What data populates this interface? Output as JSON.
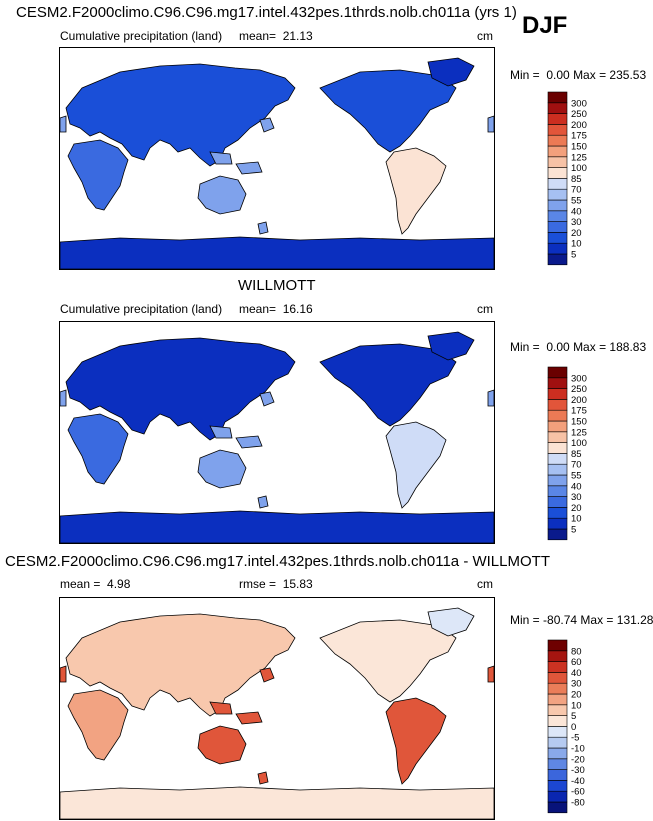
{
  "season": "DJF",
  "chart_data": [
    {
      "type": "heatmap",
      "title": "CESM2.F2000climo.C96.C96.mg17.intel.432pes.1thrds.nolb.ch011a (yrs 1)",
      "subtitle": "Cumulative precipitation (land)",
      "mean_label": "mean=",
      "mean": "21.13",
      "rmse_label": "",
      "rmse": "",
      "units": "cm",
      "min_label": "Min =",
      "min": "0.00",
      "max_label": "Max =",
      "max": "235.53",
      "levels": [
        "5",
        "10",
        "20",
        "30",
        "40",
        "55",
        "70",
        "85",
        "100",
        "125",
        "150",
        "175",
        "200",
        "250",
        "300"
      ],
      "colors": [
        "#0a1a8c",
        "#0b2fbf",
        "#1a4fd8",
        "#3a6ae0",
        "#5a86e6",
        "#7fa2ec",
        "#a6c0f2",
        "#cfdcf7",
        "#fbe3d4",
        "#f7c2a6",
        "#f3a07c",
        "#ec7a55",
        "#e2553a",
        "#cc2e20",
        "#a01010",
        "#6a0000"
      ],
      "regions": [
        {
          "name": "North America",
          "level": 2
        },
        {
          "name": "South America",
          "level": 8
        },
        {
          "name": "Eurasia",
          "level": 2
        },
        {
          "name": "Africa",
          "level": 3
        },
        {
          "name": "Australia",
          "level": 5
        },
        {
          "name": "Antarctica",
          "level": 1
        },
        {
          "name": "Greenland",
          "level": 1
        }
      ]
    },
    {
      "type": "heatmap",
      "title": "WILLMOTT",
      "subtitle": "Cumulative precipitation (land)",
      "mean_label": "mean=",
      "mean": "16.16",
      "rmse_label": "",
      "rmse": "",
      "units": "cm",
      "min_label": "Min =",
      "min": "0.00",
      "max_label": "Max =",
      "max": "188.83",
      "levels": [
        "5",
        "10",
        "20",
        "30",
        "40",
        "55",
        "70",
        "85",
        "100",
        "125",
        "150",
        "175",
        "200",
        "250",
        "300"
      ],
      "colors": [
        "#0a1a8c",
        "#0b2fbf",
        "#1a4fd8",
        "#3a6ae0",
        "#5a86e6",
        "#7fa2ec",
        "#a6c0f2",
        "#cfdcf7",
        "#fbe3d4",
        "#f7c2a6",
        "#f3a07c",
        "#ec7a55",
        "#e2553a",
        "#cc2e20",
        "#a01010",
        "#6a0000"
      ],
      "regions": [
        {
          "name": "North America",
          "level": 1
        },
        {
          "name": "South America",
          "level": 7
        },
        {
          "name": "Eurasia",
          "level": 1
        },
        {
          "name": "Africa",
          "level": 3
        },
        {
          "name": "Australia",
          "level": 5
        },
        {
          "name": "Antarctica",
          "level": 1
        },
        {
          "name": "Greenland",
          "level": 1
        }
      ]
    },
    {
      "type": "heatmap",
      "title": "CESM2.F2000climo.C96.C96.mg17.intel.432pes.1thrds.nolb.ch011a - WILLMOTT",
      "subtitle": "",
      "mean_label": "mean =",
      "mean": "4.98",
      "rmse_label": "rmse =",
      "rmse": "15.83",
      "units": "cm",
      "min_label": "Min =",
      "min": "-80.74",
      "max_label": "Max =",
      "max": "131.28",
      "levels": [
        "-80",
        "-60",
        "-40",
        "-30",
        "-20",
        "-10",
        "-5",
        "0",
        "5",
        "10",
        "20",
        "30",
        "40",
        "60",
        "80"
      ],
      "colors": [
        "#08137a",
        "#0a26b0",
        "#1c47d2",
        "#3b66dc",
        "#5f87e3",
        "#89a9ea",
        "#b6cbf1",
        "#dde7f8",
        "#fbe6d8",
        "#f8c8ad",
        "#f2a382",
        "#ea7d59",
        "#e0563a",
        "#cc3222",
        "#a51510",
        "#6e0000"
      ],
      "regions": [
        {
          "name": "North America",
          "level": 8
        },
        {
          "name": "South America",
          "level": 12
        },
        {
          "name": "Eurasia",
          "level": 9
        },
        {
          "name": "Africa",
          "level": 10
        },
        {
          "name": "Australia",
          "level": 12
        },
        {
          "name": "Antarctica",
          "level": 8
        },
        {
          "name": "Greenland",
          "level": 7
        }
      ]
    }
  ]
}
